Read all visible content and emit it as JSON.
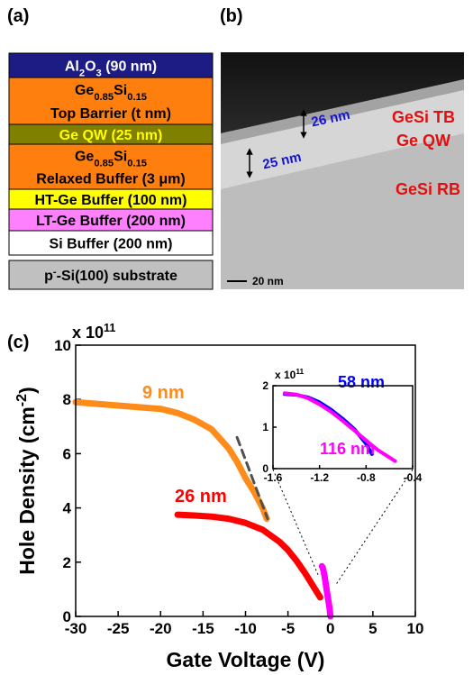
{
  "figure": {
    "panel_labels": [
      "(a)",
      "(b)",
      "(c)"
    ]
  },
  "layers": [
    {
      "color": "#1c1c84",
      "text_color": "#ffffff",
      "lines": [
        [
          "Al",
          {
            "sub": "2"
          },
          "O",
          {
            "sub": "3"
          },
          " (90 nm)"
        ]
      ]
    },
    {
      "color": "#ff7f0e",
      "text_color": "#000000",
      "lines": [
        [
          "Ge",
          {
            "sub": "0.85"
          },
          "Si",
          {
            "sub": "0.15"
          }
        ],
        [
          "Top Barrier (t nm)"
        ]
      ]
    },
    {
      "color": "#808000",
      "text_color": "#ffff00",
      "lines": [
        [
          "Ge QW (25 nm)"
        ]
      ]
    },
    {
      "color": "#ff7f0e",
      "text_color": "#000000",
      "lines": [
        [
          "Ge",
          {
            "sub": "0.85"
          },
          "Si",
          {
            "sub": "0.15"
          }
        ],
        [
          "Relaxed Buffer (3 μm)"
        ]
      ]
    },
    {
      "color": "#ffff00",
      "text_color": "#000000",
      "lines": [
        [
          "HT-Ge Buffer (100 nm)"
        ]
      ]
    },
    {
      "color": "#ff80ff",
      "text_color": "#000000",
      "lines": [
        [
          "LT-Ge Buffer (200 nm)"
        ]
      ]
    },
    {
      "color": "#ffffff",
      "text_color": "#000000",
      "lines": [
        [
          "Si Buffer (200 nm)"
        ]
      ]
    },
    {
      "color": "#c0c0c0",
      "text_color": "#000000",
      "lines": [
        [
          "p",
          {
            "sup": "-"
          },
          "-Si(100) substrate"
        ]
      ]
    }
  ],
  "tem": {
    "labels": [
      {
        "text": "GeSi TB",
        "color": "#e01010"
      },
      {
        "text": "Ge QW",
        "color": "#e01010"
      },
      {
        "text": "GeSi RB",
        "color": "#e01010"
      },
      {
        "text": "26 nm",
        "color": "#1515d0"
      },
      {
        "text": "25 nm",
        "color": "#1515d0"
      }
    ],
    "scale_bar": "20 nm"
  },
  "chart_data": [
    {
      "type": "line",
      "xlabel": "Gate Voltage (V)",
      "ylabel": [
        "Hole Density (cm",
        {
          "sup": "-2"
        },
        ")"
      ],
      "multiplier": [
        "x 10",
        {
          "sup": "11"
        }
      ],
      "xlim": [
        -30,
        10
      ],
      "ylim": [
        0,
        10
      ],
      "xticks": [
        -30,
        -25,
        -20,
        -15,
        -10,
        -5,
        0,
        5,
        10
      ],
      "yticks": [
        0,
        2,
        4,
        6,
        8,
        10
      ],
      "series": [
        {
          "name": "9 nm",
          "color": "#ff8c1a",
          "x": [
            -30,
            -28,
            -26,
            -24,
            -22,
            -20,
            -18,
            -16,
            -14,
            -12,
            -11,
            -10,
            -9,
            -8,
            -7.5
          ],
          "values": [
            7.9,
            7.85,
            7.8,
            7.75,
            7.7,
            7.65,
            7.5,
            7.25,
            6.9,
            6.2,
            5.7,
            5.1,
            4.6,
            4.0,
            3.6
          ]
        },
        {
          "color": "#505050",
          "dash": true,
          "x": [
            -11,
            -7.4
          ],
          "values": [
            6.6,
            3.6
          ]
        },
        {
          "name": "26 nm",
          "color": "#ff0000",
          "x": [
            -18,
            -16,
            -14,
            -12,
            -10,
            -8,
            -6,
            -5,
            -4,
            -3,
            -2,
            -1.2
          ],
          "values": [
            3.75,
            3.72,
            3.68,
            3.6,
            3.45,
            3.2,
            2.75,
            2.45,
            2.05,
            1.6,
            1.1,
            0.7
          ]
        },
        {
          "color": "#ff00ff",
          "x": [
            -1,
            -0.9,
            -0.7,
            -0.5,
            -0.3,
            -0.1,
            0
          ],
          "values": [
            1.85,
            1.8,
            1.5,
            1.1,
            0.7,
            0.3,
            0
          ]
        }
      ]
    },
    {
      "type": "line",
      "multiplier": [
        "x 10",
        {
          "sup": "11"
        }
      ],
      "xlim": [
        -1.6,
        -0.4
      ],
      "ylim": [
        0,
        2
      ],
      "xticks": [
        -1.6,
        -1.2,
        -0.8,
        -0.4
      ],
      "yticks": [
        0,
        1,
        2
      ],
      "series": [
        {
          "name": "58 nm",
          "color": "#0000ff",
          "x": [
            -1.5,
            -1.4,
            -1.3,
            -1.2,
            -1.1,
            -1.0,
            -0.9,
            -0.8,
            -0.75
          ],
          "values": [
            1.8,
            1.78,
            1.72,
            1.6,
            1.42,
            1.2,
            0.95,
            0.6,
            0.35
          ]
        },
        {
          "name": "116 nm",
          "color": "#ff00ff",
          "x": [
            -1.5,
            -1.4,
            -1.3,
            -1.2,
            -1.1,
            -1.0,
            -0.9,
            -0.8,
            -0.7,
            -0.6,
            -0.55
          ],
          "values": [
            1.82,
            1.79,
            1.7,
            1.55,
            1.37,
            1.15,
            0.92,
            0.68,
            0.45,
            0.27,
            0.18
          ]
        }
      ]
    }
  ]
}
